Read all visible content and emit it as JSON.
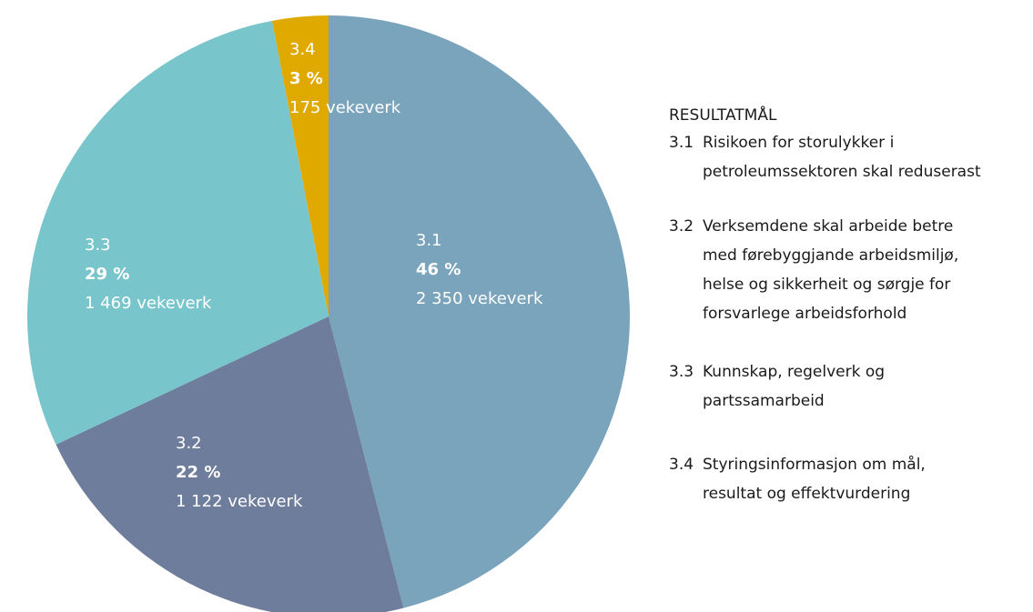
{
  "chart_data": {
    "type": "pie",
    "categories": [
      "3.1",
      "3.2",
      "3.3",
      "3.4"
    ],
    "values": [
      46,
      22,
      29,
      3
    ],
    "value_labels": [
      "46 %",
      "22 %",
      "29 %",
      "3 %"
    ],
    "counts": [
      2350,
      1122,
      1469,
      175
    ],
    "count_labels": [
      "2 350 vekeverk",
      "1 122 vekeverk",
      "1 469 vekeverk",
      "175 vekeverk"
    ],
    "colors": [
      "#7aa3bc",
      "#6e7d9b",
      "#78c6cc",
      "#e0a900"
    ],
    "legend": {
      "title": "RESULTATMÅL",
      "items": [
        [
          "Risikoen for storulykker i",
          "petroleumssektoren skal reduserast"
        ],
        [
          "Verksemdene skal arbeide betre",
          "med førebyggjande arbeidsmiljø,",
          "helse og sikkerheit og sørgje for",
          "forsvarlege arbeidsforhold"
        ],
        [
          "Kunnskap, regelverk og",
          "partssamarbeid"
        ],
        [
          "Styringsinformasjon om mål,",
          "resultat og effektvurdering"
        ]
      ]
    }
  }
}
